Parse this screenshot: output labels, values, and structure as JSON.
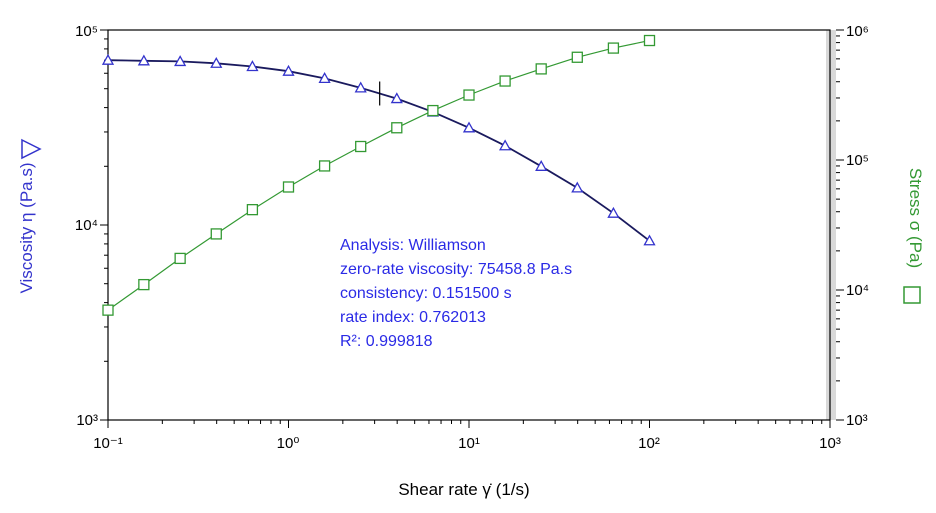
{
  "chart_data": {
    "type": "scatter",
    "xaxis": {
      "label": "Shear rate  γ̇  (1/s)",
      "scale": "log",
      "range": [
        0.1,
        1000
      ],
      "tick_labels": [
        "10⁻¹",
        "10⁰",
        "10¹",
        "10²",
        "10³"
      ]
    },
    "yaxis_left": {
      "label": "Viscosity  η  (Pa.s)",
      "scale": "log",
      "range": [
        1000,
        100000
      ],
      "tick_labels": [
        "10³",
        "10⁴",
        "10⁵"
      ]
    },
    "yaxis_right": {
      "label": "Stress  σ  (Pa)",
      "scale": "log",
      "range": [
        1000,
        1000000
      ],
      "tick_labels": [
        "10³",
        "10⁴",
        "10⁵",
        "10⁶"
      ]
    },
    "series": [
      {
        "name": "Viscosity",
        "axis": "left",
        "marker": "triangle",
        "color": "#3333cc",
        "x": [
          0.1,
          0.158,
          0.251,
          0.398,
          0.631,
          1.0,
          1.585,
          2.512,
          3.981,
          6.31,
          10.0,
          15.85,
          25.12,
          39.81,
          63.1,
          100.0
        ],
        "y": [
          70000,
          69500,
          69000,
          67500,
          65000,
          61500,
          56500,
          50500,
          44500,
          38000,
          31500,
          25500,
          20000,
          15500,
          11500,
          8300
        ]
      },
      {
        "name": "Stress",
        "axis": "right",
        "marker": "square",
        "color": "#339933",
        "x": [
          0.1,
          0.158,
          0.251,
          0.398,
          0.631,
          1.0,
          1.585,
          2.512,
          3.981,
          6.31,
          10.0,
          15.85,
          25.12,
          39.81,
          63.1,
          100.0
        ],
        "y": [
          7000,
          11000,
          17500,
          27000,
          41500,
          62000,
          90000,
          127000,
          177000,
          240000,
          316000,
          405000,
          502000,
          617000,
          726000,
          830000
        ]
      }
    ],
    "fit_curves": [
      {
        "name": "Williamson fit (viscosity)",
        "axis": "left",
        "color": "#1a1a5e"
      },
      {
        "name": "Williamson fit (stress)",
        "axis": "right",
        "color": "#339933"
      }
    ],
    "fit_marker_x": 3.2,
    "annotation": {
      "lines": [
        "Analysis: Williamson",
        "zero-rate viscosity: 75458.8 Pa.s",
        "consistency: 0.151500 s",
        "rate index: 0.762013",
        "R²: 0.999818"
      ],
      "color": "#2a2ae6"
    },
    "colors": {
      "left_axis": "#3333cc",
      "right_axis": "#339933",
      "frame": "#000000",
      "right_band": "#d9d9d9"
    }
  }
}
